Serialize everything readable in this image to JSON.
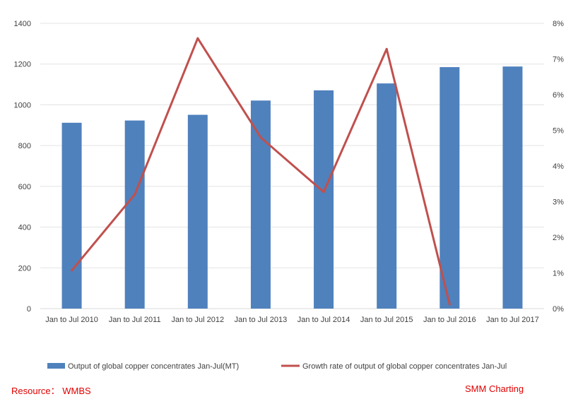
{
  "chart_data": {
    "type": "bar",
    "categories": [
      "Jan to Jul 2010",
      "Jan to Jul 2011",
      "Jan to Jul 2012",
      "Jan to Jul 2013",
      "Jan to Jul 2014",
      "Jan to Jul 2015",
      "Jan to Jul 2016",
      "Jan to Jul 2017"
    ],
    "series": [
      {
        "name": "Output of global copper concentrates Jan-Jul(MT)",
        "type": "bar",
        "axis": "left",
        "color": "#4f81bd",
        "values": [
          912,
          923,
          951,
          1021,
          1071,
          1105,
          1185,
          1188
        ]
      },
      {
        "name": "Growth rate of output of global copper concentrates Jan-Jul",
        "type": "line",
        "axis": "right",
        "color": "#c0504d",
        "values": [
          1.07,
          3.2,
          7.58,
          4.8,
          3.27,
          7.28,
          0.12,
          null
        ]
      }
    ],
    "left_axis": {
      "min": 0,
      "max": 1400,
      "ticks": [
        0,
        200,
        400,
        600,
        800,
        1000,
        1200,
        1400
      ]
    },
    "right_axis": {
      "min": 0,
      "max": 8,
      "ticks": [
        "0%",
        "1%",
        "2%",
        "3%",
        "4%",
        "5%",
        "6%",
        "7%",
        "8%"
      ]
    },
    "grid": true,
    "legend_position": "bottom"
  },
  "footer": {
    "resource": "Resource： WMBS",
    "brand": "SMM Charting"
  }
}
